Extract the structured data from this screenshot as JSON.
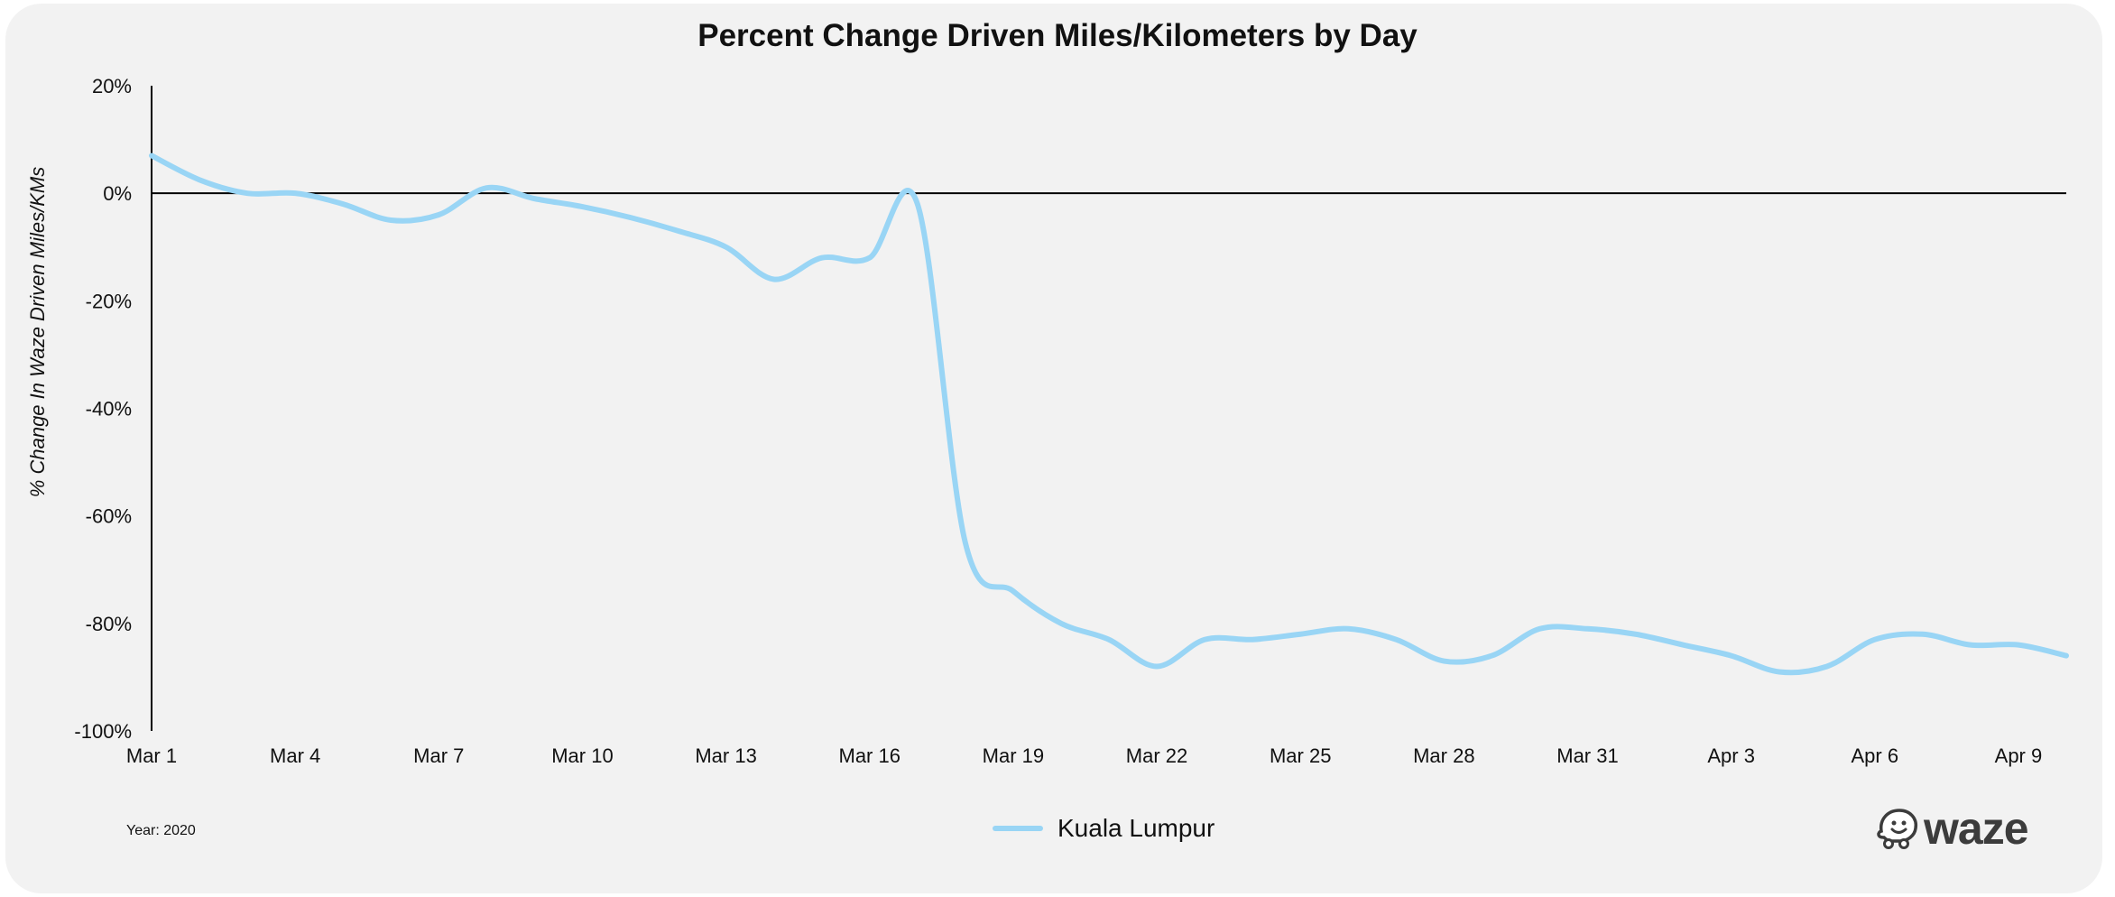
{
  "chart_data": {
    "type": "line",
    "title": "Percent Change Driven Miles/Kilometers by Day",
    "xlabel": "",
    "ylabel": "% Change In Waze Driven Miles/KMs",
    "ylim": [
      -100,
      20
    ],
    "yticks": [
      20,
      0,
      -20,
      -40,
      -60,
      -80,
      -100
    ],
    "ytick_labels": [
      "20%",
      "0%",
      "-20%",
      "-40%",
      "-60%",
      "-80%",
      "-100%"
    ],
    "x": [
      "Mar 1",
      "Mar 2",
      "Mar 3",
      "Mar 4",
      "Mar 5",
      "Mar 6",
      "Mar 7",
      "Mar 8",
      "Mar 9",
      "Mar 10",
      "Mar 11",
      "Mar 12",
      "Mar 13",
      "Mar 14",
      "Mar 15",
      "Mar 16",
      "Mar 17",
      "Mar 18",
      "Mar 19",
      "Mar 20",
      "Mar 21",
      "Mar 22",
      "Mar 23",
      "Mar 24",
      "Mar 25",
      "Mar 26",
      "Mar 27",
      "Mar 28",
      "Mar 29",
      "Mar 30",
      "Mar 31",
      "Apr 1",
      "Apr 2",
      "Apr 3",
      "Apr 4",
      "Apr 5",
      "Apr 6",
      "Apr 7",
      "Apr 8",
      "Apr 9",
      "Apr 10"
    ],
    "xtick_labels": [
      "Mar 1",
      "Mar 4",
      "Mar 7",
      "Mar 10",
      "Mar 13",
      "Mar 16",
      "Mar 19",
      "Mar 22",
      "Mar 25",
      "Mar 28",
      "Mar 31",
      "Apr 3",
      "Apr 6",
      "Apr 9"
    ],
    "xtick_index": [
      0,
      3,
      6,
      9,
      12,
      15,
      18,
      21,
      24,
      27,
      30,
      33,
      36,
      39
    ],
    "series": [
      {
        "name": "Kuala Lumpur",
        "color": "#99d5f5",
        "values": [
          7,
          2.5,
          0,
          0,
          -2,
          -5,
          -4,
          1,
          -1,
          -2.5,
          -4.5,
          -7,
          -10,
          -16,
          -12,
          -12,
          -2,
          -65,
          -74,
          -80,
          -83,
          -88,
          -83,
          -83,
          -82,
          -81,
          -83,
          -87,
          -86,
          -81,
          -81,
          -82,
          -84,
          -86,
          -89,
          -88,
          -83,
          -82,
          -84,
          -84,
          -86
        ]
      }
    ],
    "grid": false,
    "legend": "bottom-center",
    "footnote": "Year: 2020",
    "logo_text": "waze"
  }
}
